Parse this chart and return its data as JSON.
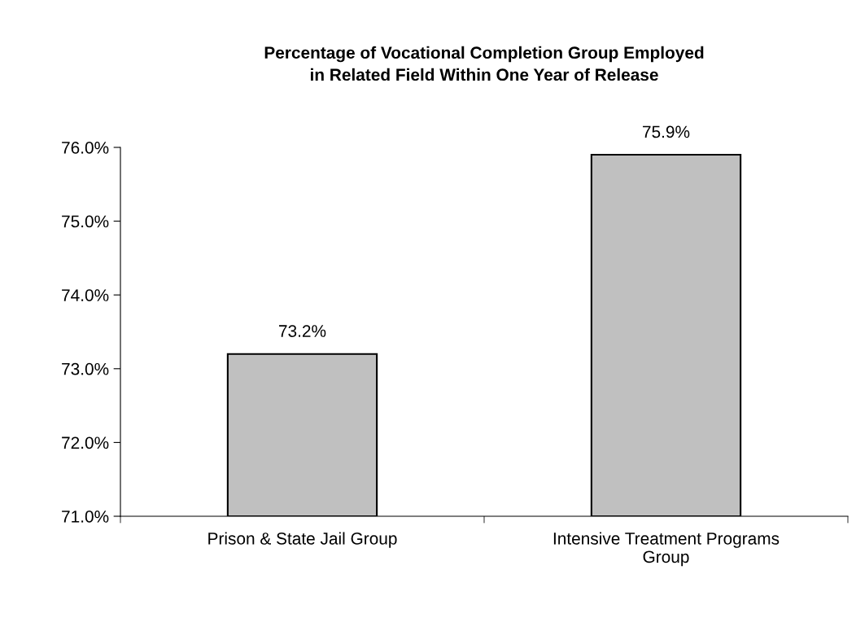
{
  "chart_data": {
    "type": "bar",
    "title": "Percentage of Vocational Completion Group Employed\nin Related Field Within One Year of Release",
    "categories": [
      "Prison & State Jail Group",
      "Intensive Treatment Programs\nGroup"
    ],
    "values": [
      73.2,
      75.9
    ],
    "color": "#c0c0c0",
    "value_labels": [
      "73.2%",
      "75.9%"
    ],
    "ylim": [
      71,
      76
    ],
    "yticks": [
      {
        "value": 71,
        "label": "71.0%"
      },
      {
        "value": 72,
        "label": "72.0%"
      },
      {
        "value": 73,
        "label": "73.0%"
      },
      {
        "value": 74,
        "label": "74.0%"
      },
      {
        "value": 75,
        "label": "75.0%"
      },
      {
        "value": 76,
        "label": "76.0%"
      }
    ],
    "grid": false,
    "legend": false
  }
}
